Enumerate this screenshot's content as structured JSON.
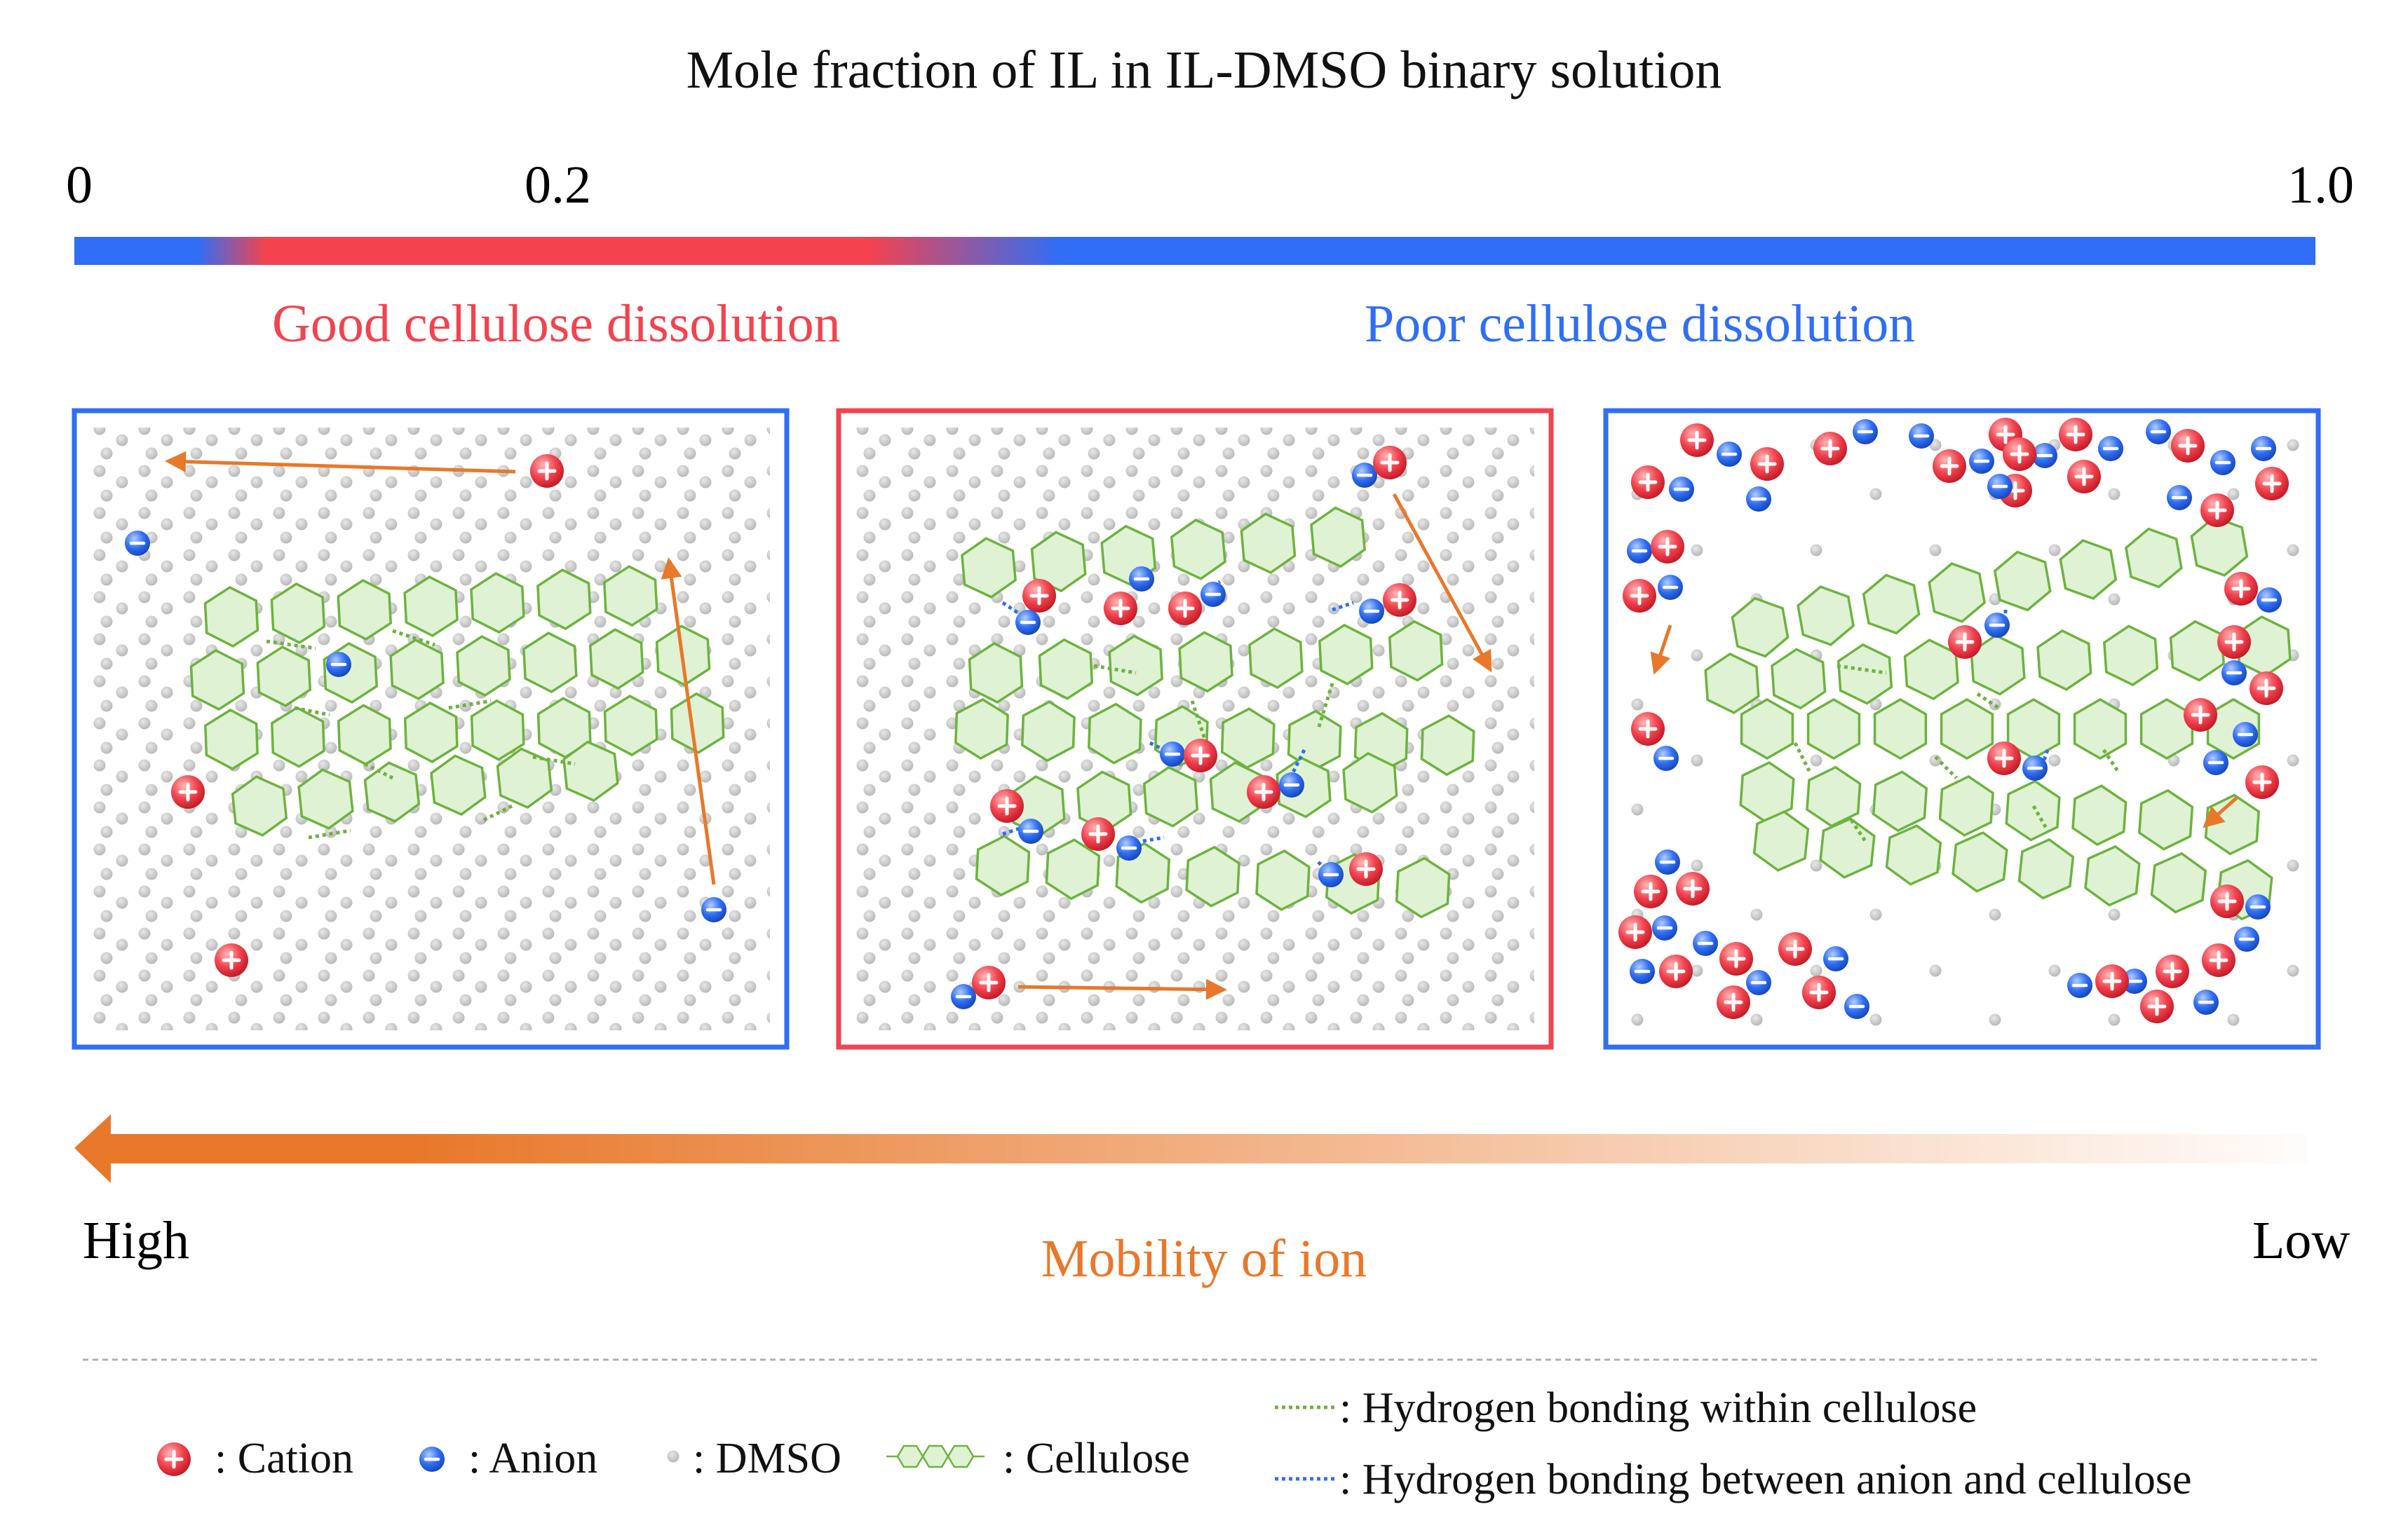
{
  "title": "Mole fraction of IL in IL-DMSO binary solution",
  "scale": {
    "start": "0",
    "mid": "0.2",
    "end": "1.0"
  },
  "regions": {
    "good": "Good cellulose dissolution",
    "poor": "Poor cellulose dissolution"
  },
  "mobility": {
    "high": "High",
    "low": "Low",
    "label": "Mobility of ion"
  },
  "legend": {
    "cation": ": Cation",
    "anion": ": Anion",
    "dmso": ": DMSO",
    "cellulose": ": Cellulose",
    "hb_within": ": Hydrogen bonding within cellulose",
    "hb_between": ": Hydrogen bonding between anion and cellulose"
  },
  "colors": {
    "blue": "#2f6ef5",
    "red": "#f2434f",
    "orange": "#e8782a",
    "green": "#6db33f",
    "green_fill": "#dff2d4",
    "gray": "#bdbdbd"
  }
}
